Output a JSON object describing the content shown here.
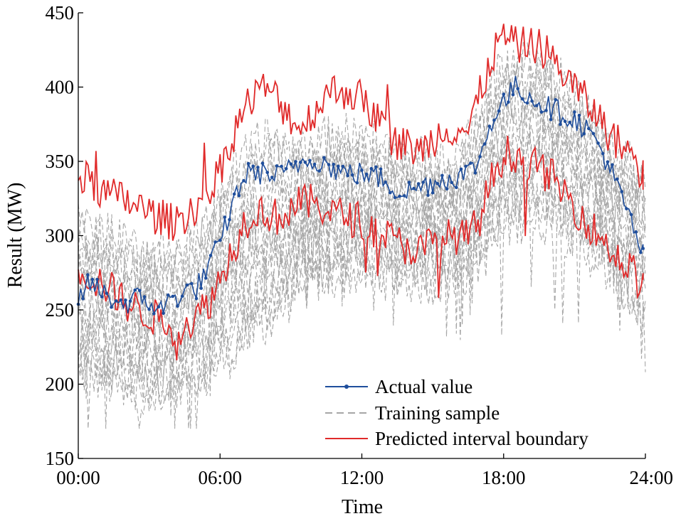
{
  "chart_data": {
    "type": "line",
    "xlabel": "Time",
    "ylabel": "Result (MW)",
    "xlim": [
      0,
      24
    ],
    "ylim": [
      150,
      450
    ],
    "x_ticks": [
      {
        "value": 0,
        "label": "00:00"
      },
      {
        "value": 6,
        "label": "06:00"
      },
      {
        "value": 12,
        "label": "12:00"
      },
      {
        "value": 18,
        "label": "18:00"
      },
      {
        "value": 24,
        "label": "24:00"
      }
    ],
    "y_ticks": [
      150,
      200,
      250,
      300,
      350,
      400,
      450
    ],
    "grid": false,
    "legend_position": "bottom-right",
    "series": [
      {
        "name": "Actual value",
        "color": "#1f4e9c",
        "style": "solid line with dot markers",
        "x": [
          0,
          0.5,
          1,
          1.5,
          2,
          2.5,
          3,
          3.5,
          4,
          4.5,
          5,
          5.5,
          6,
          6.5,
          7,
          7.5,
          8,
          8.5,
          9,
          9.5,
          10,
          10.5,
          11,
          11.5,
          12,
          12.5,
          13,
          13.5,
          14,
          14.5,
          15,
          15.5,
          16,
          16.5,
          17,
          17.5,
          18,
          18.5,
          19,
          19.5,
          20,
          20.5,
          21,
          21.5,
          22,
          22.5,
          23,
          23.5,
          23.9
        ],
        "values": [
          258,
          268,
          262,
          257,
          254,
          258,
          255,
          250,
          258,
          262,
          265,
          278,
          295,
          320,
          340,
          343,
          341,
          340,
          345,
          350,
          352,
          348,
          343,
          342,
          342,
          340,
          337,
          330,
          330,
          333,
          336,
          338,
          340,
          342,
          352,
          378,
          390,
          400,
          395,
          390,
          386,
          382,
          378,
          372,
          362,
          345,
          325,
          305,
          287
        ]
      },
      {
        "name": "Training sample",
        "color": "#a6a6a6",
        "style": "dashed",
        "x": [
          0,
          1,
          2,
          3,
          4,
          5,
          6,
          7,
          8,
          9,
          10,
          11,
          12,
          13,
          14,
          15,
          16,
          17,
          18,
          19,
          20,
          21,
          22,
          23,
          24
        ],
        "band_low": [
          205,
          200,
          190,
          185,
          190,
          195,
          210,
          225,
          240,
          255,
          265,
          270,
          272,
          270,
          268,
          265,
          268,
          280,
          300,
          310,
          305,
          295,
          280,
          260,
          240
        ],
        "band_high": [
          310,
          305,
          295,
          290,
          290,
          300,
          330,
          355,
          370,
          360,
          365,
          370,
          368,
          362,
          355,
          352,
          355,
          385,
          420,
          425,
          415,
          395,
          375,
          355,
          340
        ]
      },
      {
        "name": "Predicted interval boundary",
        "color": "#e02a2a",
        "style": "solid",
        "x": [
          0,
          0.5,
          1,
          1.5,
          2,
          2.5,
          3,
          3.5,
          4,
          4.5,
          5,
          5.5,
          6,
          6.5,
          7,
          7.5,
          8,
          8.5,
          9,
          9.5,
          10,
          10.5,
          11,
          11.5,
          12,
          12.5,
          13,
          13.5,
          14,
          14.5,
          15,
          15.5,
          16,
          16.5,
          17,
          17.5,
          18,
          18.5,
          19,
          19.5,
          20,
          20.5,
          21,
          21.5,
          22,
          22.5,
          23,
          23.5,
          23.9
        ],
        "upper": [
          340,
          336,
          330,
          326,
          324,
          320,
          315,
          312,
          309,
          314,
          320,
          328,
          345,
          366,
          385,
          395,
          400,
          390,
          380,
          372,
          385,
          395,
          398,
          397,
          392,
          382,
          372,
          362,
          360,
          357,
          365,
          372,
          373,
          370,
          395,
          420,
          435,
          428,
          428,
          428,
          420,
          410,
          400,
          390,
          380,
          368,
          360,
          355,
          340
        ],
        "lower": [
          280,
          272,
          268,
          262,
          255,
          250,
          247,
          242,
          238,
          240,
          245,
          255,
          270,
          290,
          308,
          318,
          315,
          312,
          318,
          322,
          322,
          318,
          314,
          312,
          310,
          304,
          300,
          295,
          292,
          290,
          295,
          298,
          300,
          298,
          312,
          338,
          355,
          355,
          350,
          345,
          340,
          330,
          320,
          310,
          300,
          292,
          282,
          275,
          265
        ]
      }
    ]
  }
}
